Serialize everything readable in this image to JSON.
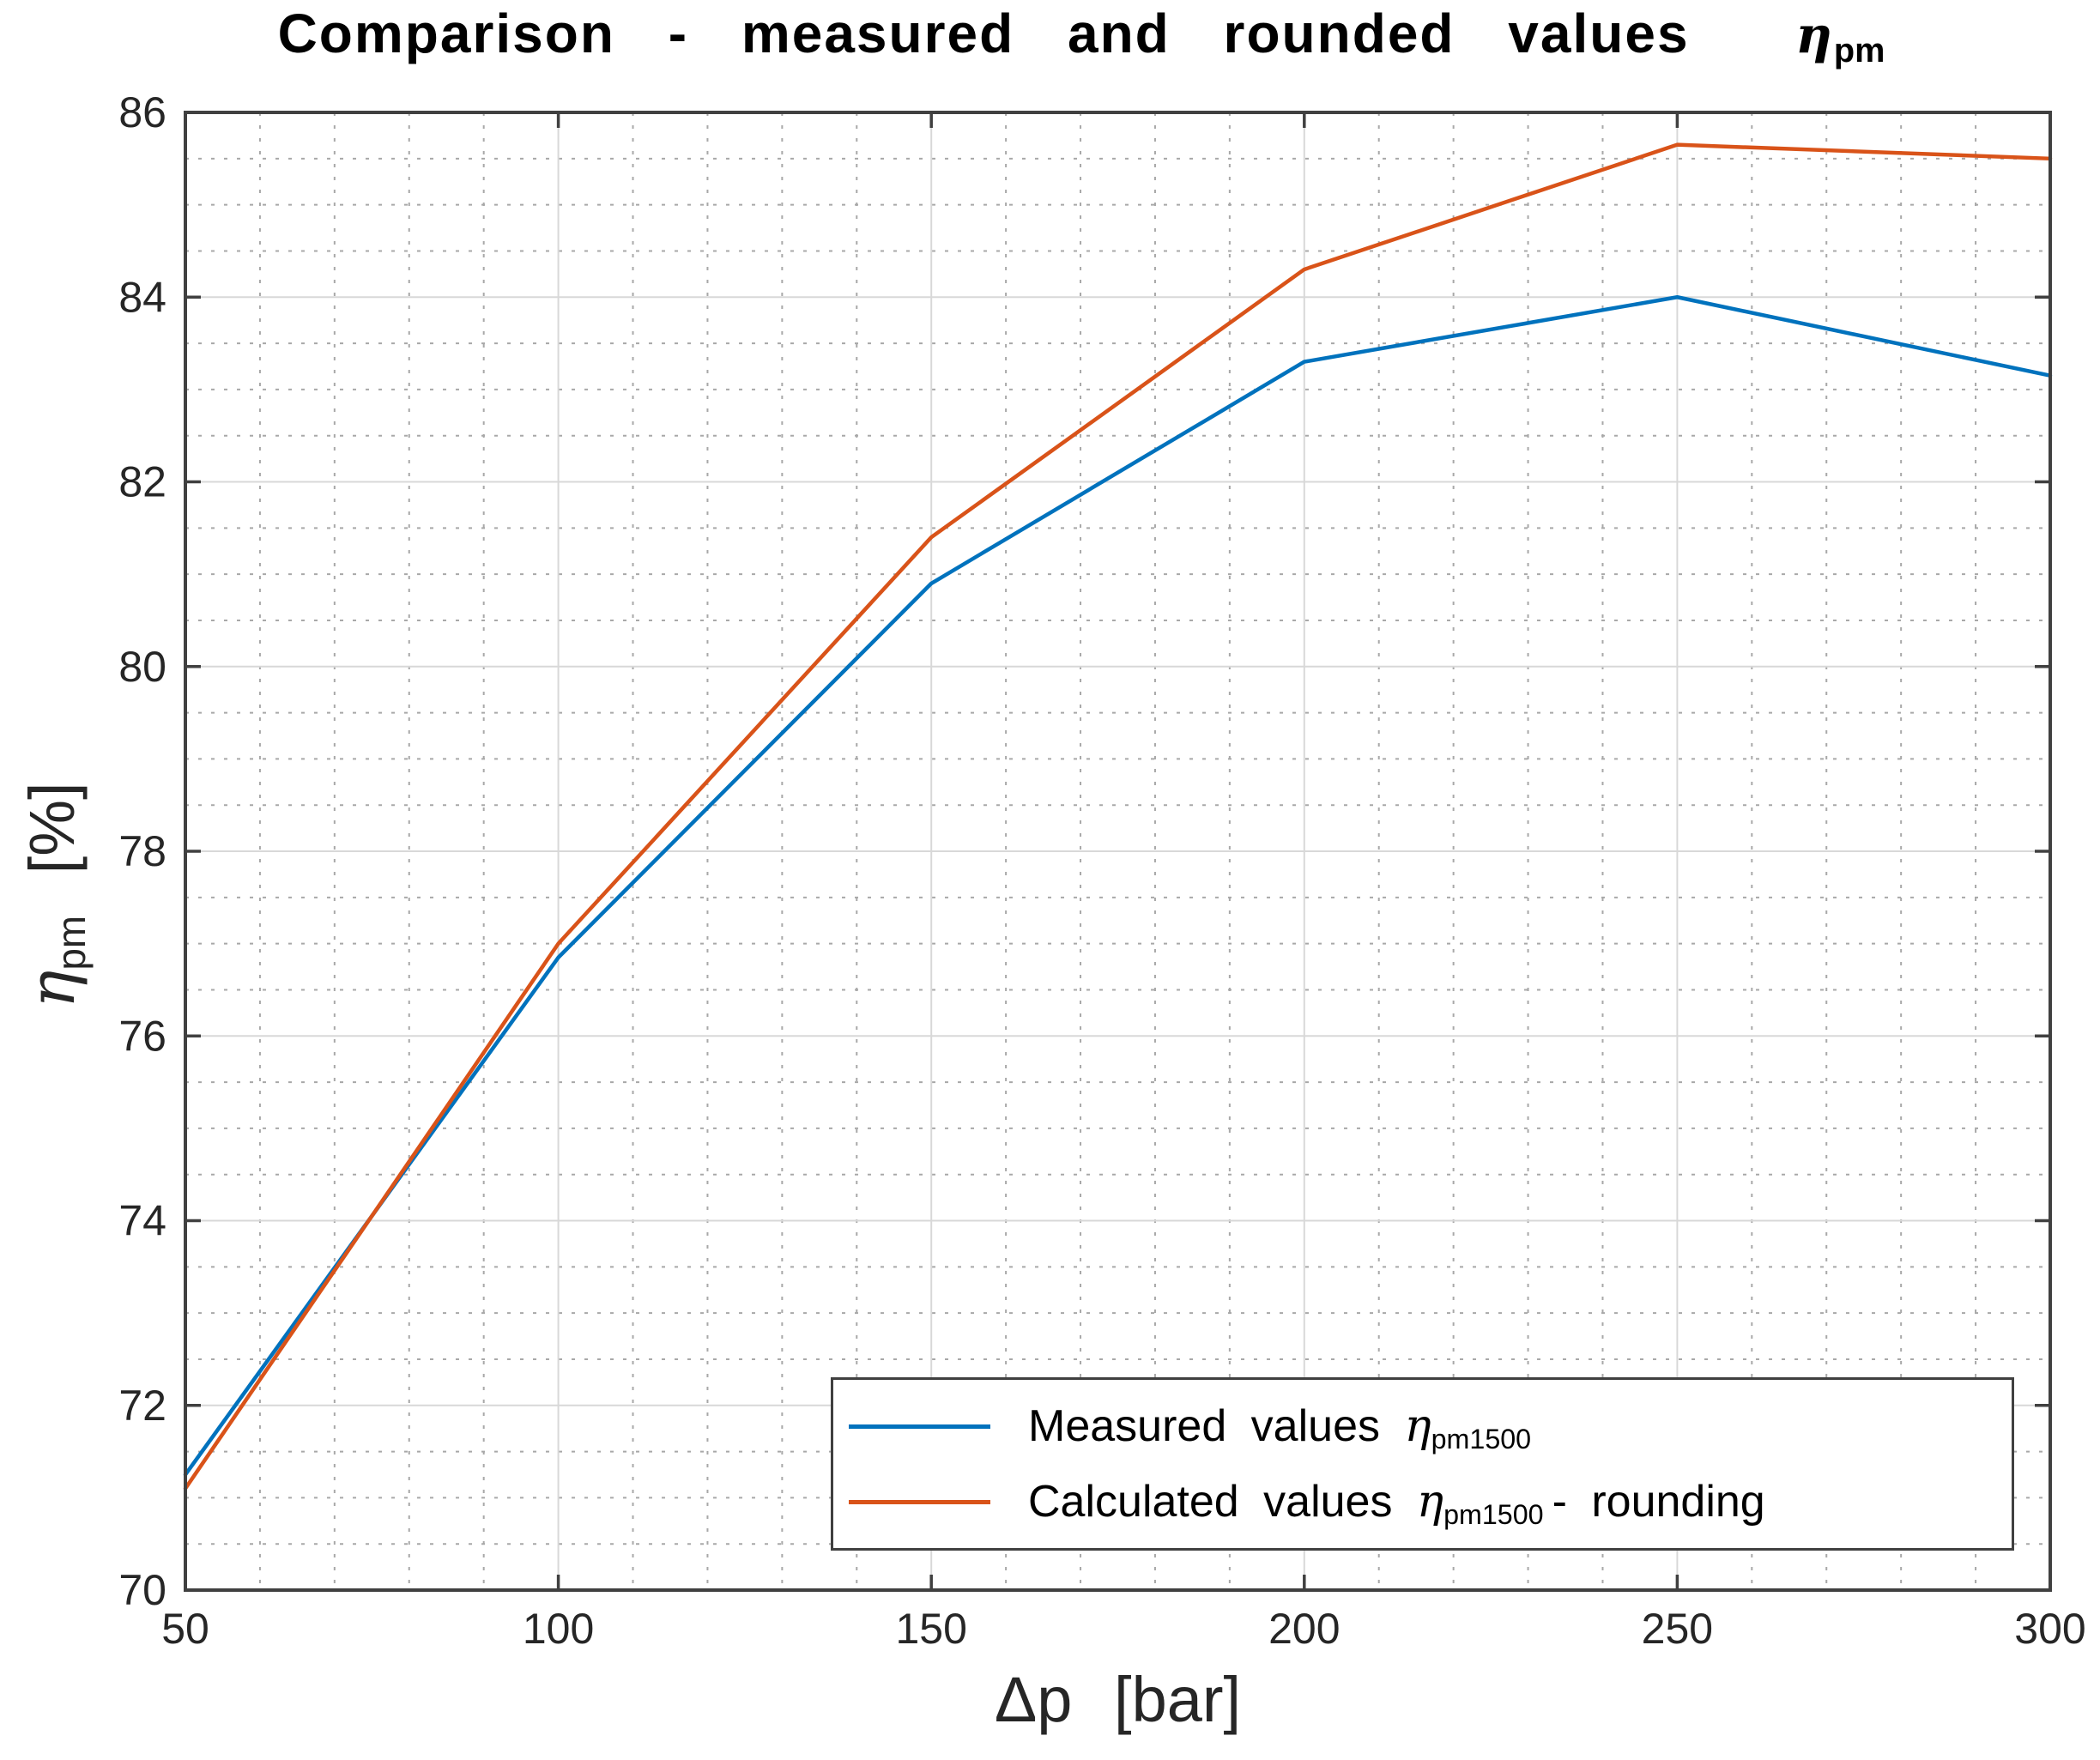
{
  "title": {
    "text": "Comparison - measured and rounded values",
    "symbol": "η",
    "symbol_sub": "pm"
  },
  "axes": {
    "x": {
      "label_symbol": "Δp",
      "label_unit": "[bar]",
      "ticks": [
        50,
        100,
        150,
        200,
        250,
        300
      ],
      "minor_step": 10
    },
    "y": {
      "label_symbol": "η",
      "label_sub": "pm",
      "label_unit": "[%]",
      "ticks": [
        70,
        72,
        74,
        76,
        78,
        80,
        82,
        84,
        86
      ],
      "minor_step": 0.5
    }
  },
  "legend": {
    "items": [
      {
        "label": "Measured values",
        "symbol": "η",
        "symbol_sub": "pm1500",
        "suffix": "",
        "color": "#0072BD"
      },
      {
        "label": "Calculated values",
        "symbol": "η",
        "symbol_sub": "pm1500",
        "suffix": "- rounding",
        "color": "#D95319"
      }
    ]
  },
  "colors": {
    "background": "#ffffff",
    "axis": "#404040",
    "tick_label": "#262626",
    "grid_major": "#d8d8d8",
    "grid_minor": "#a8a8a8",
    "series_blue": "#0072BD",
    "series_orange": "#D95319"
  },
  "chart_data": {
    "type": "line",
    "title": "Comparison - measured and rounded values η_pm",
    "xlabel": "Δp [bar]",
    "ylabel": "η_pm [%]",
    "xlim": [
      50,
      300
    ],
    "ylim": [
      70,
      86
    ],
    "x": [
      50,
      100,
      150,
      200,
      250,
      300
    ],
    "series": [
      {
        "name": "Measured values η_pm1500",
        "color": "#0072BD",
        "values": [
          71.25,
          76.85,
          80.9,
          83.3,
          84.0,
          83.15
        ]
      },
      {
        "name": "Calculated values η_pm1500 - rounding",
        "color": "#D95319",
        "values": [
          71.1,
          77.0,
          81.4,
          84.3,
          85.65,
          85.5
        ]
      }
    ],
    "grid": "major solid every 2 units (y) / 50 bar (x); minor dotted every 0.5 units (y) / 10 bar (x)",
    "legend_position": "inside bottom, right of center"
  }
}
